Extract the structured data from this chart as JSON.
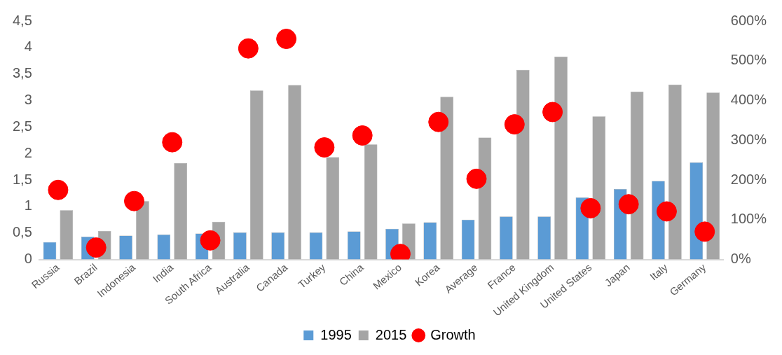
{
  "chart_data": {
    "type": "bar",
    "categories": [
      "Russia",
      "Brazil",
      "Indonesia",
      "India",
      "South Africa",
      "Australia",
      "Canada",
      "Turkey",
      "China",
      "Mexico",
      "Korea",
      "Average",
      "France",
      "United Kingdom",
      "United States",
      "Japan",
      "Italy",
      "Germany"
    ],
    "series": [
      {
        "name": "1995",
        "color": "#5b9bd5",
        "values": [
          0.33,
          0.43,
          0.45,
          0.47,
          0.49,
          0.51,
          0.51,
          0.51,
          0.53,
          0.58,
          0.7,
          0.75,
          0.81,
          0.81,
          1.17,
          1.33,
          1.48,
          1.83
        ]
      },
      {
        "name": "2015",
        "color": "#a5a5a5",
        "values": [
          0.93,
          0.54,
          1.1,
          1.82,
          0.71,
          3.19,
          3.29,
          1.93,
          2.17,
          0.68,
          3.07,
          2.3,
          3.58,
          3.83,
          2.7,
          3.17,
          3.3,
          3.15
        ]
      },
      {
        "name": "Growth",
        "type": "scatter",
        "axis": "y2",
        "color": "#ff0000",
        "marker": "circle",
        "x": [
          "Russia",
          "Brazil",
          "Indonesia",
          "India",
          "South Africa",
          "Australia",
          "Canada",
          "Turkey",
          "China",
          "Mexico",
          "Korea",
          "Average",
          "France",
          "United Kingdom",
          "United States",
          "Japan",
          "Italy",
          "Germany"
        ],
        "values": [
          175,
          30,
          147,
          295,
          48,
          531,
          555,
          282,
          312,
          14,
          346,
          203,
          340,
          371,
          129,
          139,
          121,
          70
        ]
      }
    ],
    "ylim": [
      0,
      4.5
    ],
    "yticks": [
      0,
      {
        "value": 0.5,
        "label": "0,5"
      },
      1,
      {
        "value": 1.5,
        "label": "1,5"
      },
      2,
      {
        "value": 2.5,
        "label": "2,5"
      },
      3,
      {
        "value": 3.5,
        "label": "3,5"
      },
      4,
      {
        "value": 4.5,
        "label": "4,5"
      }
    ],
    "y2lim": [
      0,
      600
    ],
    "y2ticks": [
      {
        "value": 0,
        "label": "0%"
      },
      {
        "value": 100,
        "label": "100%"
      },
      {
        "value": 200,
        "label": "200%"
      },
      {
        "value": 300,
        "label": "300%"
      },
      {
        "value": 400,
        "label": "400%"
      },
      {
        "value": 500,
        "label": "500%"
      },
      {
        "value": 600,
        "label": "600%"
      }
    ],
    "grid": false,
    "legend": "bottom"
  }
}
